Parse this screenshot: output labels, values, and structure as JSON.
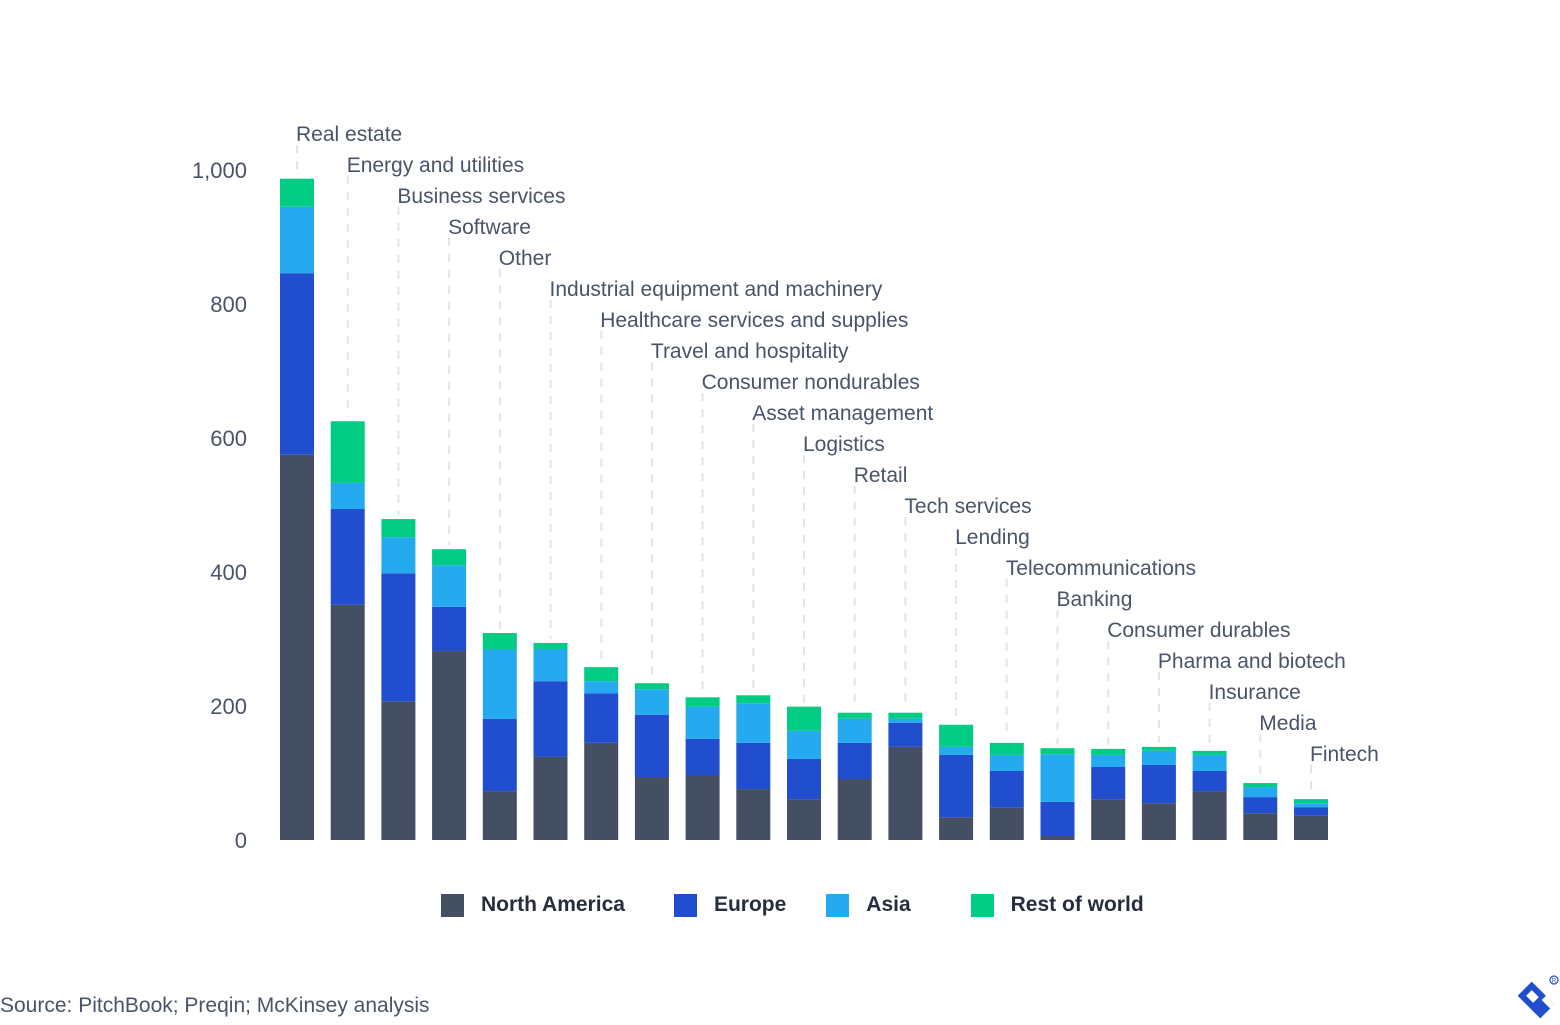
{
  "chart_data": {
    "type": "bar",
    "stacked": true,
    "title": "",
    "xlabel": "",
    "ylabel": "",
    "ylim": [
      0,
      1000
    ],
    "yticks": [
      0,
      200,
      400,
      600,
      800,
      1000
    ],
    "ytick_labels": [
      "0",
      "200",
      "400",
      "600",
      "800",
      "1,000"
    ],
    "grid": false,
    "legend_position": "bottom",
    "categories": [
      "Real estate",
      "Energy and utilities",
      "Business services",
      "Software",
      "Other",
      "Industrial equipment and machinery",
      "Healthcare services and supplies",
      "Travel and hospitality",
      "Consumer nondurables",
      "Asset management",
      "Logistics",
      "Retail",
      "Tech services",
      "Lending",
      "Telecommunications",
      "Banking",
      "Consumer durables",
      "Pharma and biotech",
      "Insurance",
      "Media",
      "Fintech"
    ],
    "series": [
      {
        "name": "North America",
        "color": "#454f63",
        "values": [
          575,
          351,
          207,
          282,
          73,
          124,
          145,
          94,
          97,
          76,
          61,
          91,
          139,
          34,
          49,
          6,
          61,
          55,
          73,
          40,
          37
        ]
      },
      {
        "name": "Europe",
        "color": "#204ecf",
        "values": [
          271,
          143,
          191,
          66,
          108,
          113,
          74,
          93,
          54,
          69,
          60,
          54,
          36,
          93,
          54,
          51,
          48,
          57,
          30,
          24,
          12
        ]
      },
      {
        "name": "Asia",
        "color": "#25aaf0",
        "values": [
          99,
          39,
          54,
          62,
          104,
          48,
          18,
          38,
          48,
          59,
          42,
          36,
          6,
          12,
          24,
          71,
          18,
          21,
          24,
          15,
          6
        ]
      },
      {
        "name": "Rest of world",
        "color": "#00cc83",
        "values": [
          42,
          92,
          27,
          24,
          24,
          9,
          21,
          9,
          14,
          12,
          36,
          9,
          9,
          33,
          18,
          9,
          9,
          6,
          6,
          6,
          6
        ]
      }
    ]
  },
  "source": "Source: PitchBook; Preqin; McKinsey analysis",
  "logo": {
    "icon": "toptal-logo-icon",
    "color": "#204ecf"
  }
}
